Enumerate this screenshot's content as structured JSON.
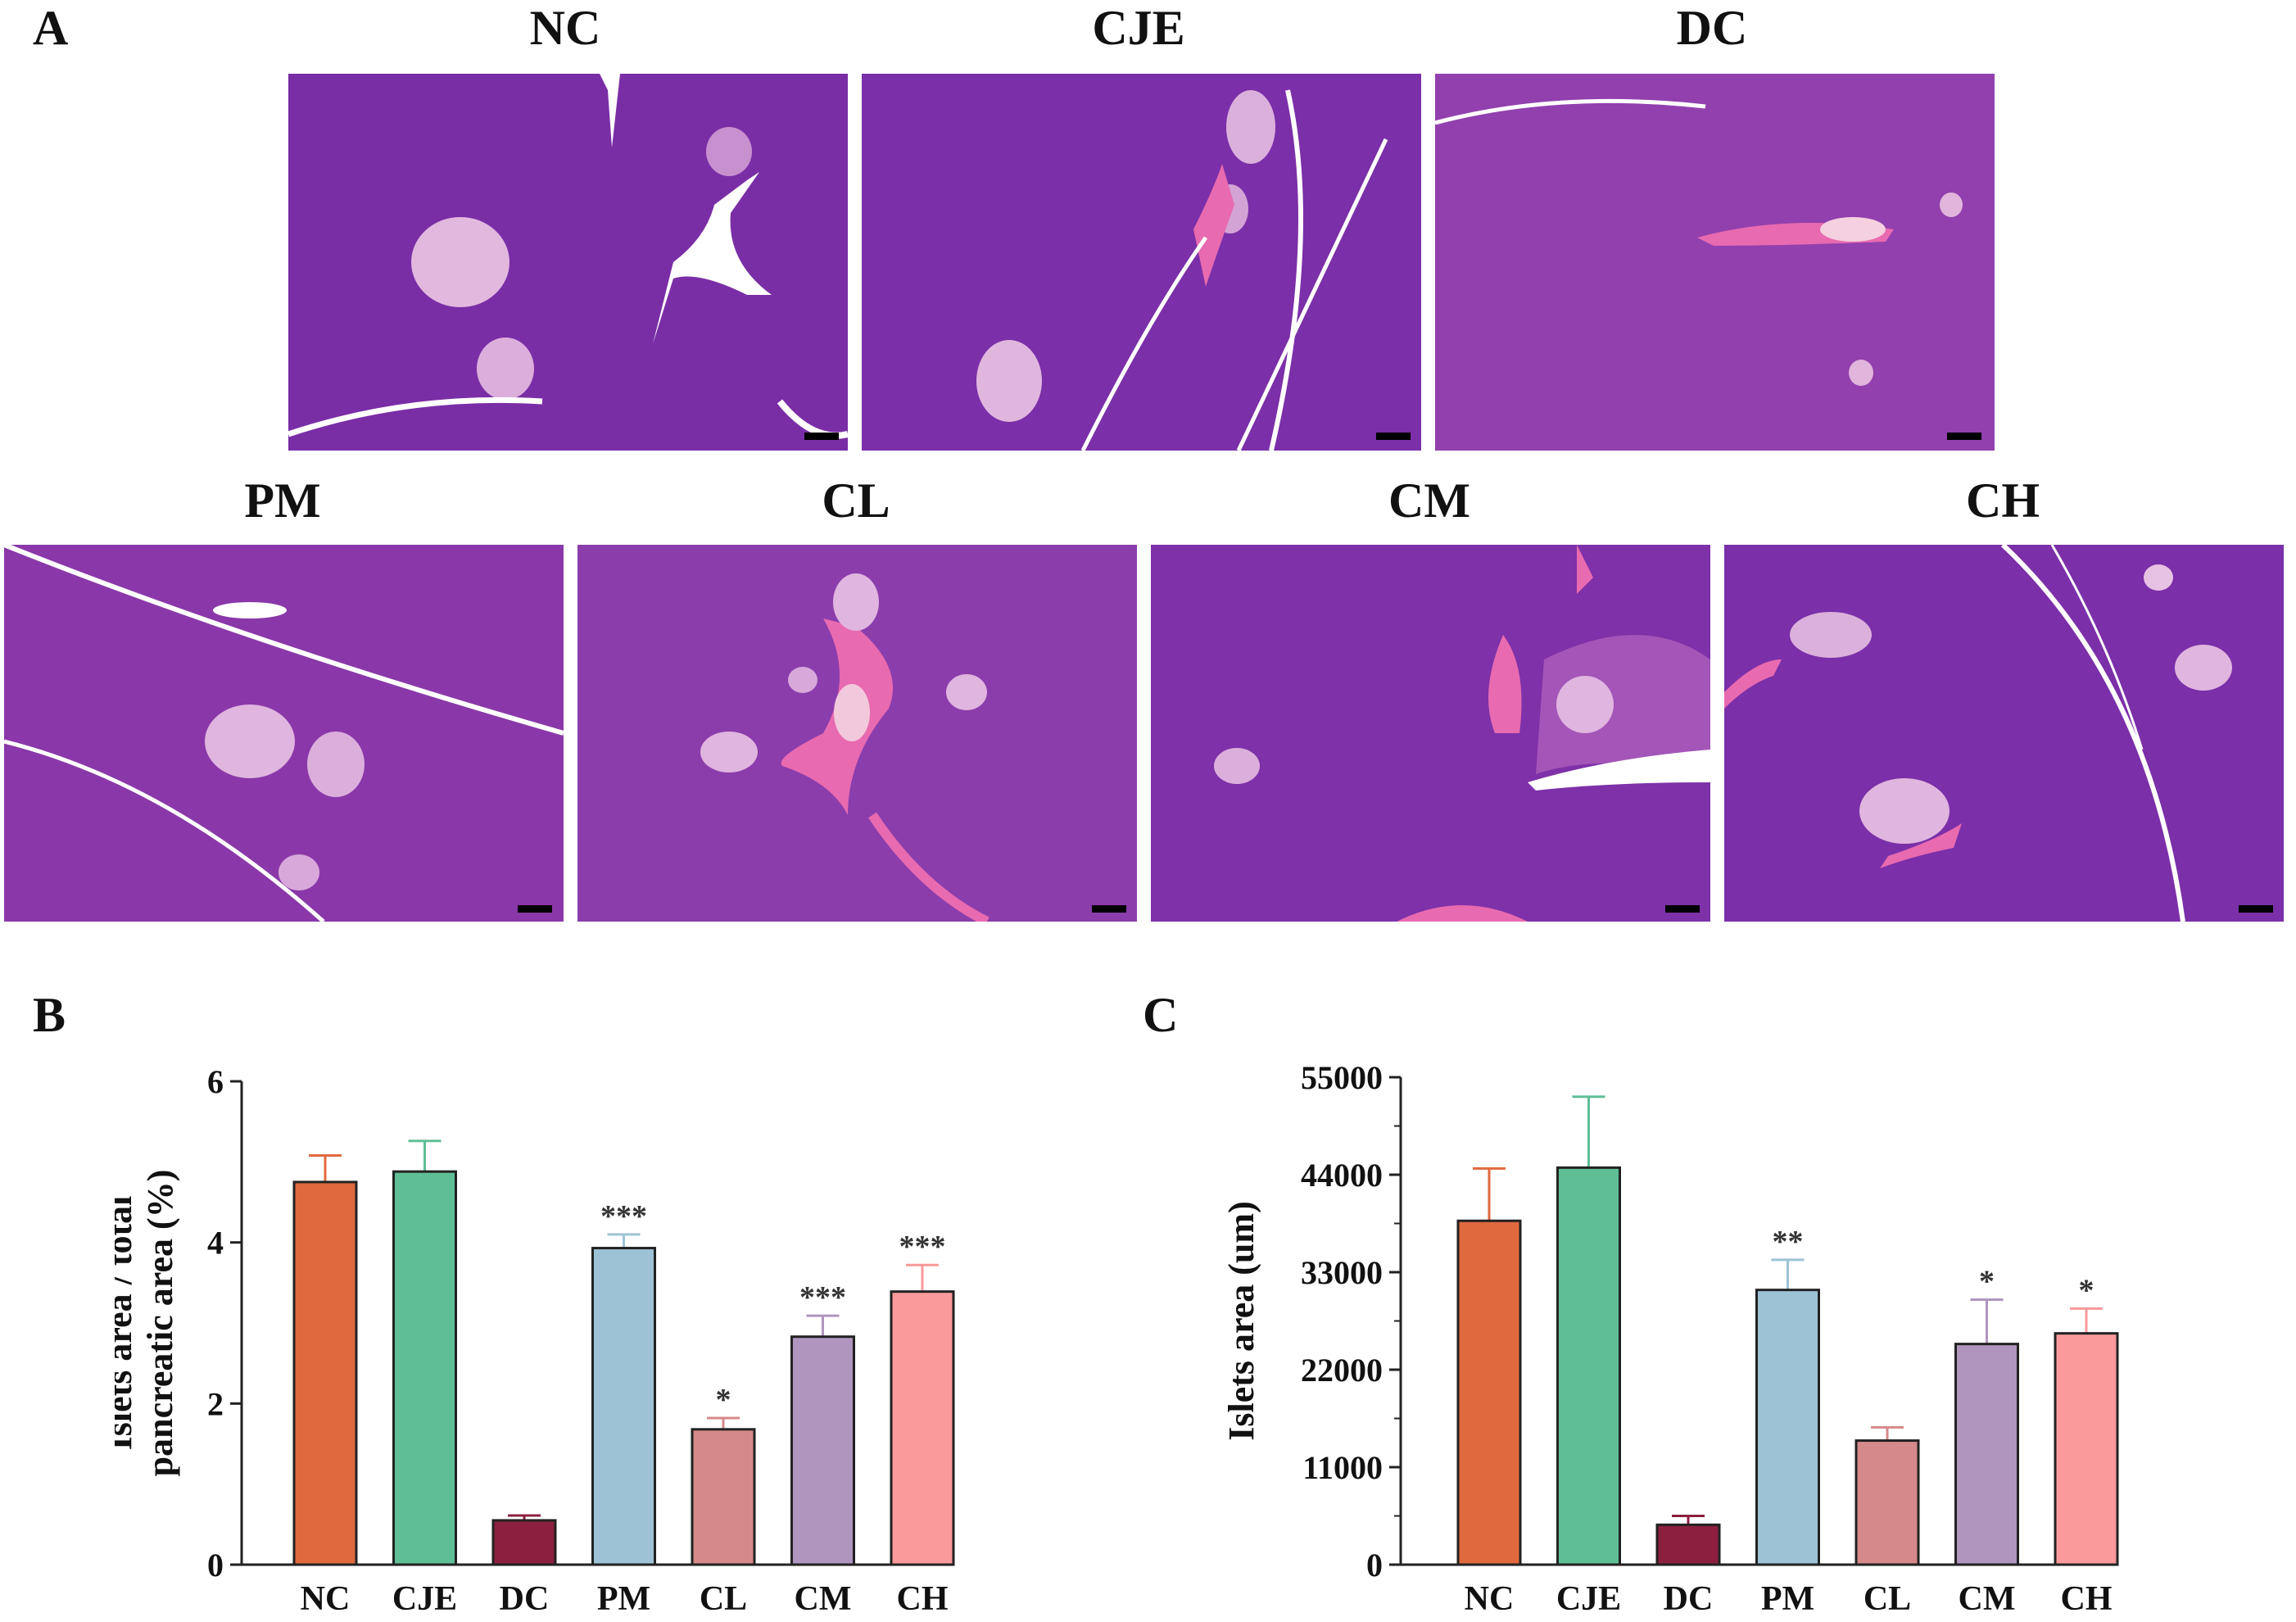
{
  "panels": {
    "A": {
      "letter": "A",
      "images": [
        {
          "label": "NC"
        },
        {
          "label": "CJE"
        },
        {
          "label": "DC"
        },
        {
          "label": "PM"
        },
        {
          "label": "CL"
        },
        {
          "label": "CM"
        },
        {
          "label": "CH"
        }
      ]
    },
    "B": {
      "letter": "B"
    },
    "C": {
      "letter": "C"
    }
  },
  "colors": {
    "NC": "#E0693E",
    "CJE": "#5FBE96",
    "DC": "#8C1F3F",
    "PM": "#9DC2D6",
    "CL": "#D6898A",
    "CM": "#B095BF",
    "CH": "#FA9A9A",
    "tissue": "#7d2ea9",
    "islet": "#e2b8df",
    "vessel": "#e86ab0"
  },
  "chart_data": [
    {
      "type": "bar",
      "panel": "B",
      "categories": [
        "NC",
        "CJE",
        "DC",
        "PM",
        "CL",
        "CM",
        "CH"
      ],
      "values": [
        4.75,
        4.88,
        0.55,
        3.93,
        1.68,
        2.83,
        3.39
      ],
      "errors": [
        0.33,
        0.38,
        0.06,
        0.17,
        0.14,
        0.26,
        0.33
      ],
      "significance": [
        "",
        "",
        "",
        "***",
        "*",
        "***",
        "***"
      ],
      "ylabel_lines": [
        "Islets area / total",
        "pancreatic area  (%)"
      ],
      "ylim": [
        0,
        6
      ],
      "yticks": [
        0,
        2,
        4,
        6
      ],
      "grid": false
    },
    {
      "type": "bar",
      "panel": "C",
      "categories": [
        "NC",
        "CJE",
        "DC",
        "PM",
        "CL",
        "CM",
        "CH"
      ],
      "values": [
        38800,
        44800,
        4500,
        31000,
        14000,
        24900,
        26100
      ],
      "errors": [
        5900,
        8000,
        1000,
        3400,
        1500,
        5000,
        2800
      ],
      "significance": [
        "",
        "",
        "",
        "**",
        "",
        "*",
        "*"
      ],
      "ylabel_lines": [
        "Islets area (um)"
      ],
      "ylim": [
        0,
        55000
      ],
      "yticks": [
        0,
        11000,
        22000,
        33000,
        44000,
        55000
      ],
      "grid": false
    }
  ]
}
